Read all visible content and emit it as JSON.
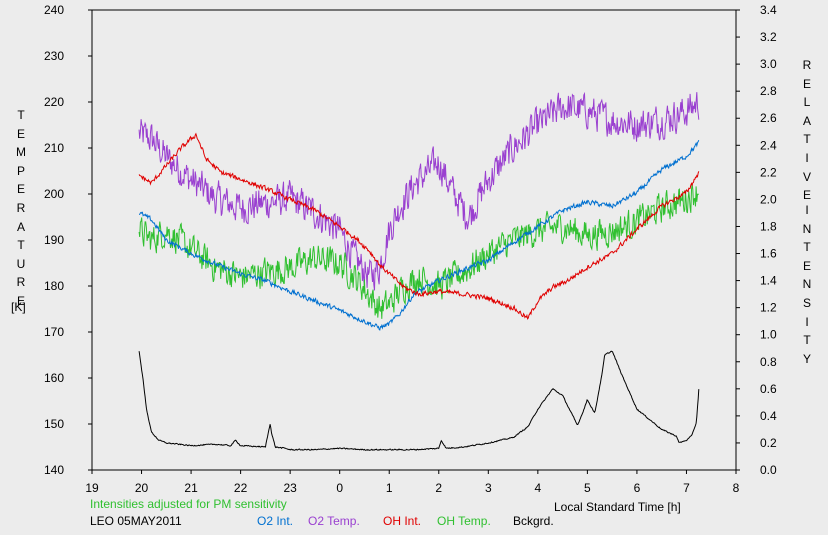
{
  "colors": {
    "background": "#ececec",
    "o2_int": "#0070d0",
    "o2_temp": "#9a40d0",
    "oh_int": "#e00000",
    "oh_temp": "#30c030",
    "bckgrd": "#000000",
    "note": "#30c030"
  },
  "labels": {
    "left_axis_title": "TEMPERATURE",
    "left_axis_unit": "[K]",
    "right_axis_title_1": "RELATIVE",
    "right_axis_title_2": "INTENSITY",
    "x_axis_title": "Local Standard Time [h]",
    "note": "Intensities adjusted for PM sensitivity",
    "station_date": "LEO 05MAY2011"
  },
  "chart_data": {
    "type": "line",
    "xlabel": "Local Standard Time [h]",
    "ylabel": "TEMPERATURE [K]",
    "y2label": "RELATIVE INTENSITY",
    "x_ticks": [
      "19",
      "20",
      "21",
      "22",
      "23",
      "0",
      "1",
      "2",
      "3",
      "4",
      "5",
      "6",
      "7",
      "8"
    ],
    "y_ticks": [
      140,
      150,
      160,
      170,
      180,
      190,
      200,
      210,
      220,
      230,
      240
    ],
    "y2_ticks": [
      "0.0",
      "0.2",
      "0.4",
      "0.6",
      "0.8",
      "1.0",
      "1.2",
      "1.4",
      "1.6",
      "1.8",
      "2.0",
      "2.2",
      "2.4",
      "2.6",
      "2.8",
      "3.0",
      "3.2",
      "3.4"
    ],
    "xlim": [
      19,
      32
    ],
    "ylim": [
      140,
      240
    ],
    "y2lim": [
      0,
      3.4
    ],
    "grid": false,
    "series": [
      {
        "name": "O2 Int.",
        "axis": "right",
        "noise": 0.025,
        "x": [
          19.95,
          20.2,
          20.5,
          21,
          21.5,
          22,
          22.5,
          23,
          23.5,
          24,
          24.5,
          24.8,
          25,
          25.2,
          25.5,
          26,
          26.5,
          27,
          27.5,
          28,
          28.5,
          29,
          29.5,
          30,
          30.5,
          31,
          31.25
        ],
        "y": [
          1.9,
          1.85,
          1.7,
          1.6,
          1.52,
          1.45,
          1.4,
          1.32,
          1.25,
          1.18,
          1.1,
          1.05,
          1.08,
          1.15,
          1.3,
          1.4,
          1.48,
          1.55,
          1.68,
          1.8,
          1.92,
          1.98,
          1.95,
          2.05,
          2.22,
          2.32,
          2.42
        ]
      },
      {
        "name": "O2 Temp.",
        "axis": "left",
        "noise": 5,
        "x": [
          19.95,
          20.2,
          20.5,
          21,
          21.5,
          22,
          22.5,
          23,
          23.5,
          24,
          24.3,
          24.6,
          24.8,
          25,
          25.2,
          25.5,
          26,
          26.3,
          26.6,
          27,
          27.5,
          28,
          28.5,
          29,
          29.5,
          30,
          30.5,
          31,
          31.25
        ],
        "y": [
          213,
          212,
          208,
          203,
          199,
          197,
          198,
          199,
          196,
          192,
          186,
          182,
          184,
          192,
          197,
          202,
          207,
          200,
          195,
          203,
          210,
          215,
          219,
          218,
          216,
          215,
          216,
          218,
          220
        ]
      },
      {
        "name": "OH Int.",
        "axis": "right",
        "noise": 0.025,
        "x": [
          19.95,
          20.2,
          20.5,
          20.8,
          21.1,
          21.3,
          21.6,
          22,
          22.5,
          23,
          23.5,
          24,
          24.3,
          24.6,
          24.8,
          25,
          25.3,
          25.6,
          26,
          26.5,
          27,
          27.5,
          27.8,
          28,
          28.3,
          28.6,
          29,
          29.5,
          30,
          30.5,
          31,
          31.25
        ],
        "y": [
          2.18,
          2.12,
          2.25,
          2.38,
          2.48,
          2.3,
          2.2,
          2.15,
          2.08,
          2.0,
          1.92,
          1.8,
          1.72,
          1.62,
          1.52,
          1.45,
          1.35,
          1.3,
          1.32,
          1.3,
          1.27,
          1.2,
          1.12,
          1.25,
          1.35,
          1.4,
          1.5,
          1.6,
          1.78,
          1.95,
          2.05,
          2.2
        ]
      },
      {
        "name": "OH Temp.",
        "axis": "left",
        "noise": 4.5,
        "x": [
          19.95,
          20.2,
          20.5,
          21,
          21.5,
          22,
          22.5,
          23,
          23.5,
          24,
          24.3,
          24.6,
          24.8,
          25,
          25.3,
          25.6,
          26,
          26.5,
          27,
          27.5,
          28,
          28.5,
          29,
          29.5,
          30,
          30.5,
          31,
          31.25
        ],
        "y": [
          192,
          190,
          192,
          188,
          184,
          182,
          183,
          184,
          186,
          185,
          182,
          178,
          175,
          176,
          180,
          182,
          180,
          183,
          187,
          190,
          192,
          193,
          191,
          192,
          194,
          197,
          199,
          201
        ]
      },
      {
        "name": "Bckgrd.",
        "axis": "right",
        "noise": 0.006,
        "x": [
          19.95,
          20.02,
          20.1,
          20.2,
          20.35,
          20.5,
          21,
          21.5,
          21.8,
          21.9,
          22,
          22.5,
          22.6,
          22.62,
          22.7,
          22.9,
          23,
          23.5,
          24,
          24.5,
          25,
          25.5,
          26,
          26.05,
          26.15,
          26.5,
          27,
          27.5,
          27.8,
          28,
          28.3,
          28.5,
          28.8,
          28.9,
          29,
          29.15,
          29.3,
          29.35,
          29.5,
          29.7,
          30,
          30.5,
          30.8,
          30.85,
          31,
          31.1,
          31.2,
          31.25
        ],
        "y": [
          0.88,
          0.7,
          0.45,
          0.28,
          0.22,
          0.2,
          0.18,
          0.19,
          0.18,
          0.22,
          0.18,
          0.17,
          0.35,
          0.28,
          0.17,
          0.16,
          0.15,
          0.15,
          0.16,
          0.15,
          0.15,
          0.15,
          0.16,
          0.22,
          0.16,
          0.17,
          0.2,
          0.24,
          0.32,
          0.45,
          0.6,
          0.55,
          0.33,
          0.42,
          0.52,
          0.42,
          0.72,
          0.85,
          0.88,
          0.7,
          0.45,
          0.3,
          0.25,
          0.2,
          0.22,
          0.25,
          0.35,
          0.6
        ]
      }
    ]
  }
}
